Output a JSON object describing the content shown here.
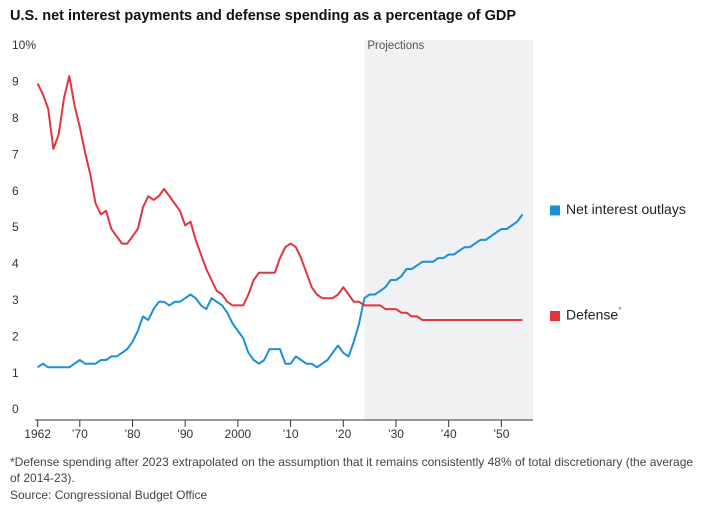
{
  "chart_data": {
    "type": "line",
    "title": "U.S. net interest payments and defense spending as a percentage of GDP",
    "annotation": "Projections",
    "projection_start": 2024,
    "footnote": "*Defense spending after 2023 extrapolated on the assumption that it remains consistently 48% of total discretionary (the average of 2014-23).",
    "source": "Source: Congressional Budget Office",
    "legend_marker": "*",
    "x": [
      1962,
      1963,
      1964,
      1965,
      1966,
      1967,
      1968,
      1969,
      1970,
      1971,
      1972,
      1973,
      1974,
      1975,
      1976,
      1977,
      1978,
      1979,
      1980,
      1981,
      1982,
      1983,
      1984,
      1985,
      1986,
      1987,
      1988,
      1989,
      1990,
      1991,
      1992,
      1993,
      1994,
      1995,
      1996,
      1997,
      1998,
      1999,
      2000,
      2001,
      2002,
      2003,
      2004,
      2005,
      2006,
      2007,
      2008,
      2009,
      2010,
      2011,
      2012,
      2013,
      2014,
      2015,
      2016,
      2017,
      2018,
      2019,
      2020,
      2021,
      2022,
      2023,
      2024,
      2025,
      2026,
      2027,
      2028,
      2029,
      2030,
      2031,
      2032,
      2033,
      2034,
      2035,
      2036,
      2037,
      2038,
      2039,
      2040,
      2041,
      2042,
      2043,
      2044,
      2045,
      2046,
      2047,
      2048,
      2049,
      2050,
      2051,
      2052,
      2053,
      2054
    ],
    "series": [
      {
        "name": "Net interest outlays",
        "color": "#1a90d8",
        "values": [
          1.2,
          1.3,
          1.2,
          1.2,
          1.2,
          1.2,
          1.2,
          1.3,
          1.4,
          1.3,
          1.3,
          1.3,
          1.4,
          1.4,
          1.5,
          1.5,
          1.6,
          1.7,
          1.9,
          2.2,
          2.6,
          2.5,
          2.8,
          3.0,
          3.0,
          2.9,
          3.0,
          3.0,
          3.1,
          3.2,
          3.1,
          2.9,
          2.8,
          3.1,
          3.0,
          2.9,
          2.7,
          2.4,
          2.2,
          2.0,
          1.6,
          1.4,
          1.3,
          1.4,
          1.7,
          1.7,
          1.7,
          1.3,
          1.3,
          1.5,
          1.4,
          1.3,
          1.3,
          1.2,
          1.3,
          1.4,
          1.6,
          1.8,
          1.6,
          1.5,
          1.9,
          2.4,
          3.1,
          3.2,
          3.2,
          3.3,
          3.4,
          3.6,
          3.6,
          3.7,
          3.9,
          3.9,
          4.0,
          4.1,
          4.1,
          4.1,
          4.2,
          4.2,
          4.3,
          4.3,
          4.4,
          4.5,
          4.5,
          4.6,
          4.7,
          4.7,
          4.8,
          4.9,
          5.0,
          5.0,
          5.1,
          5.2,
          5.4
        ]
      },
      {
        "name": "Defense",
        "color": "#e0353f",
        "values": [
          9.0,
          8.7,
          8.3,
          7.2,
          7.6,
          8.6,
          9.2,
          8.4,
          7.8,
          7.1,
          6.5,
          5.7,
          5.4,
          5.5,
          5.0,
          4.8,
          4.6,
          4.6,
          4.8,
          5.0,
          5.6,
          5.9,
          5.8,
          5.9,
          6.1,
          5.9,
          5.7,
          5.5,
          5.1,
          5.2,
          4.7,
          4.3,
          3.9,
          3.6,
          3.3,
          3.2,
          3.0,
          2.9,
          2.9,
          2.9,
          3.2,
          3.6,
          3.8,
          3.8,
          3.8,
          3.8,
          4.2,
          4.5,
          4.6,
          4.5,
          4.2,
          3.8,
          3.4,
          3.2,
          3.1,
          3.1,
          3.1,
          3.2,
          3.4,
          3.2,
          3.0,
          3.0,
          2.9,
          2.9,
          2.9,
          2.9,
          2.8,
          2.8,
          2.8,
          2.7,
          2.7,
          2.6,
          2.6,
          2.5,
          2.5,
          2.5,
          2.5,
          2.5,
          2.5,
          2.5,
          2.5,
          2.5,
          2.5,
          2.5,
          2.5,
          2.5,
          2.5,
          2.5,
          2.5,
          2.5,
          2.5,
          2.5,
          2.5
        ]
      }
    ],
    "xlim": [
      1961.5,
      2056
    ],
    "xticks": [
      1962,
      {
        "value": 1970,
        "label": "’70"
      },
      {
        "value": 1980,
        "label": "’80"
      },
      {
        "value": 1990,
        "label": "’90"
      },
      2000,
      {
        "value": 2010,
        "label": "’10"
      },
      {
        "value": 2020,
        "label": "’20"
      },
      {
        "value": 2030,
        "label": "’30"
      },
      {
        "value": 2040,
        "label": "’40"
      },
      {
        "value": 2050,
        "label": "’50"
      }
    ],
    "ylim": [
      0,
      10
    ],
    "yticks": [
      0,
      1,
      2,
      3,
      4,
      5,
      6,
      7,
      8,
      9,
      {
        "value": 10,
        "label": "10%"
      }
    ],
    "grid": false
  }
}
